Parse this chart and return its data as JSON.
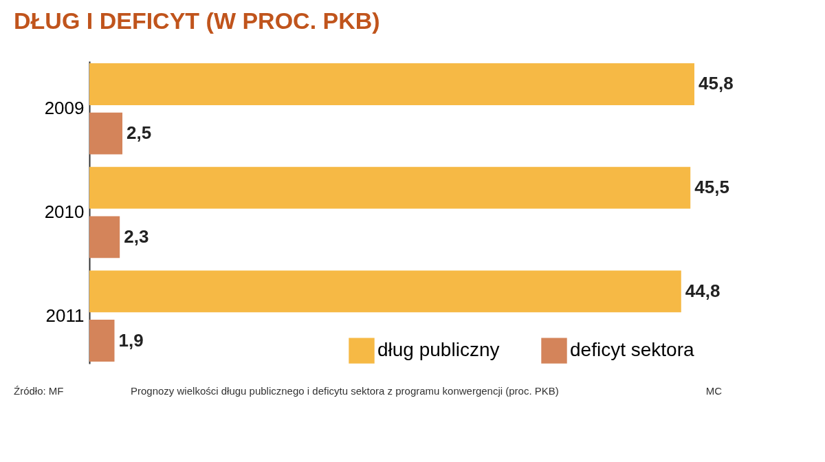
{
  "chart_data": {
    "type": "bar",
    "orientation": "horizontal",
    "title": "DŁUG I DEFICYT (W PROC. PKB)",
    "categories": [
      "2009",
      "2010",
      "2011"
    ],
    "series": [
      {
        "name": "dług publiczny",
        "color": "#f6b945",
        "values": [
          45.8,
          45.5,
          44.8
        ],
        "value_labels": [
          "45,8",
          "45,5",
          "44,8"
        ]
      },
      {
        "name": "deficyt sektora",
        "color": "#d4845a",
        "values": [
          2.5,
          2.3,
          1.9
        ],
        "value_labels": [
          "2,5",
          "2,3",
          "1,9"
        ]
      }
    ],
    "legend": "bottom right",
    "tick_labels": "y",
    "annotations": [
      "Źródło: MF",
      "Prognozy wielkości długu publicznego i deficytu sektora z programu konwergencji (proc. PKB)",
      "MC"
    ]
  }
}
